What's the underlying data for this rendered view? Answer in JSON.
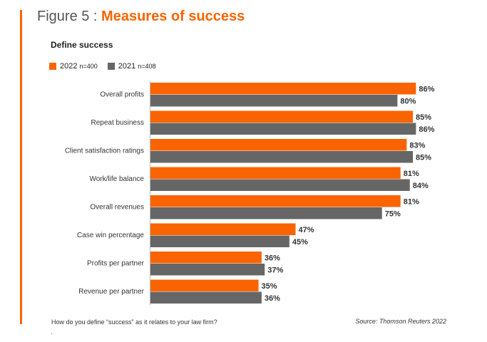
{
  "figure": {
    "prefix": "Figure 5 : ",
    "title": "Measures of success"
  },
  "subtitle": "Define success",
  "legend": {
    "items": [
      {
        "label": "2022",
        "n": "n=400",
        "color": "#fa6400"
      },
      {
        "label": "2021",
        "n": "n=408",
        "color": "#666666"
      }
    ]
  },
  "footnote": "How do you define “success” as it relates to your law firm?",
  "footnote_dot": ".",
  "source": "Source: Thomson Reuters 2022",
  "colors": {
    "accent": "#fa6400",
    "series_2021": "#666666"
  },
  "chart_data": {
    "type": "bar",
    "orientation": "horizontal",
    "categories": [
      "Overall profits",
      "Repeat business",
      "Client satisfaction ratings",
      "Work/life balance",
      "Overall revenues",
      "Case win percentage",
      "Profits per partner",
      "Revenue per partner"
    ],
    "series": [
      {
        "name": "2022",
        "values": [
          86,
          85,
          83,
          81,
          81,
          47,
          36,
          35
        ],
        "color": "#fa6400"
      },
      {
        "name": "2021",
        "values": [
          80,
          86,
          85,
          84,
          75,
          45,
          37,
          36
        ],
        "color": "#666666"
      }
    ],
    "value_suffix": "%",
    "xlim": [
      0,
      100
    ],
    "grid": false,
    "legend_position": "top-left"
  }
}
